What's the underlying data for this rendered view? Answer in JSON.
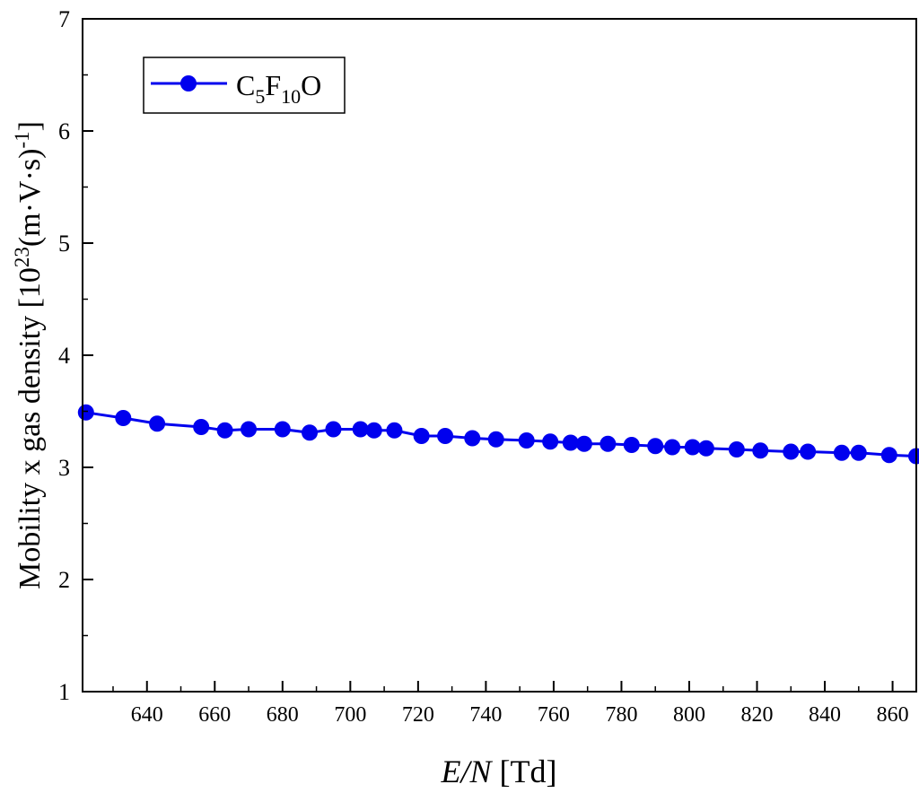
{
  "chart_data": {
    "type": "line",
    "title": "",
    "xlabel_italic": "E/N",
    "xlabel_unit": "[Td]",
    "ylabel_main": "Mobility x gas density [10",
    "ylabel_exp1": "23",
    "ylabel_mid": "(m·V·s)",
    "ylabel_exp2": "-1",
    "ylabel_end": "]",
    "xlim": [
      621,
      867
    ],
    "ylim": [
      1,
      7
    ],
    "xticks": [
      640,
      660,
      680,
      700,
      720,
      740,
      760,
      780,
      800,
      820,
      840,
      860
    ],
    "yticks": [
      1,
      2,
      3,
      4,
      5,
      6,
      7
    ],
    "grid": false,
    "legend_position": "top-left",
    "series": [
      {
        "name_main": "C",
        "name_sub1": "5",
        "name_mid": "F",
        "name_sub2": "10",
        "name_end": "O",
        "color": "#0000ee",
        "x": [
          622,
          633,
          643,
          656,
          663,
          670,
          680,
          688,
          695,
          703,
          707,
          713,
          721,
          728,
          736,
          743,
          752,
          759,
          765,
          769,
          776,
          783,
          790,
          795,
          801,
          805,
          814,
          821,
          830,
          835,
          845,
          850,
          859,
          867
        ],
        "y": [
          3.49,
          3.44,
          3.39,
          3.36,
          3.33,
          3.34,
          3.34,
          3.31,
          3.34,
          3.34,
          3.33,
          3.33,
          3.28,
          3.28,
          3.26,
          3.25,
          3.24,
          3.23,
          3.22,
          3.21,
          3.21,
          3.2,
          3.19,
          3.18,
          3.18,
          3.17,
          3.16,
          3.15,
          3.14,
          3.14,
          3.13,
          3.13,
          3.11,
          3.1
        ]
      }
    ]
  }
}
